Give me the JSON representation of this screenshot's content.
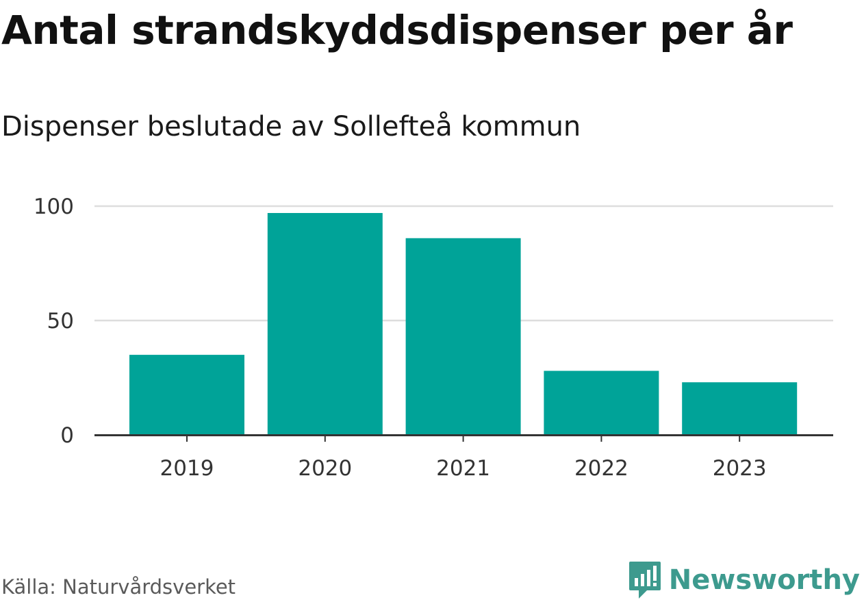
{
  "header": {
    "title": "Antal strandskyddsdispenser per år",
    "subtitle": "Dispenser beslutade av Sollefteå kommun"
  },
  "footer": {
    "source": "Källa: Naturvårdsverket",
    "brand": "Newsworthy",
    "brand_icon": "newsworthy-logo-icon"
  },
  "colors": {
    "bar": "#00a398",
    "grid": "#dddddd",
    "axis": "#333333",
    "brand": "#3d9a8e"
  },
  "chart_data": {
    "type": "bar",
    "title": "Antal strandskyddsdispenser per år",
    "subtitle": "Dispenser beslutade av Sollefteå kommun",
    "xlabel": "",
    "ylabel": "",
    "categories": [
      "2019",
      "2020",
      "2021",
      "2022",
      "2023"
    ],
    "values": [
      35,
      97,
      86,
      28,
      23
    ],
    "ylim": [
      0,
      100
    ],
    "yticks": [
      0,
      50,
      100
    ],
    "grid": true,
    "legend": "none"
  }
}
